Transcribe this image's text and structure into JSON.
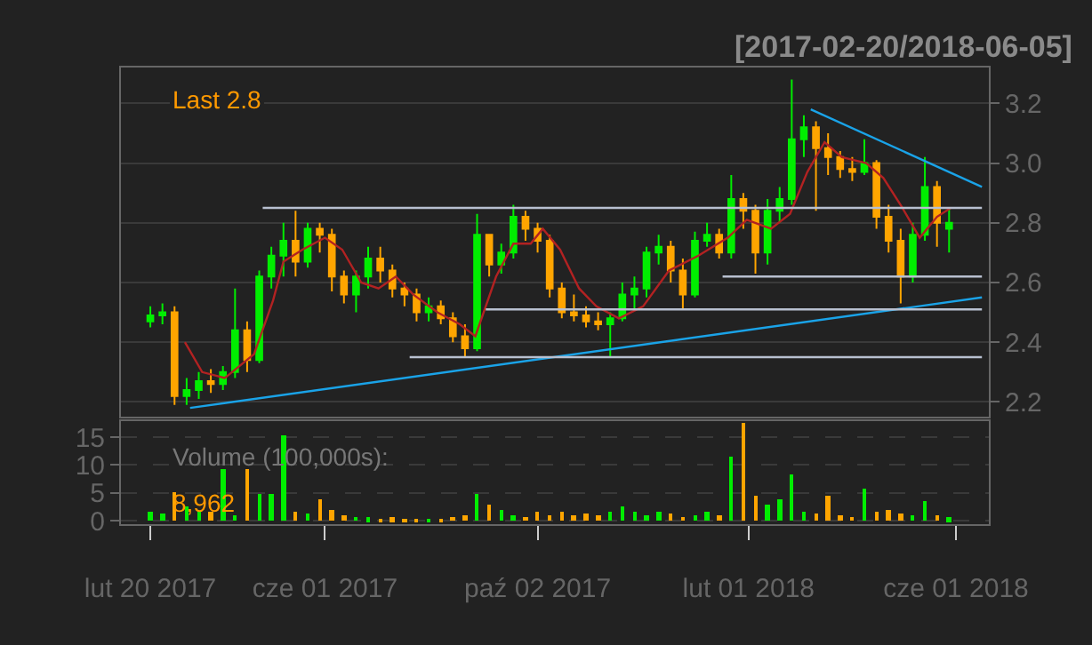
{
  "chart_data": [
    {
      "type": "candlestick",
      "title": "[2017-02-20/2018-06-05]",
      "annotations": [
        "Last 2.8"
      ],
      "x": [
        "2017-02-20",
        "2017-02-27",
        "2017-03-06",
        "2017-03-13",
        "2017-03-20",
        "2017-03-27",
        "2017-04-03",
        "2017-04-10",
        "2017-04-17",
        "2017-04-24",
        "2017-05-01",
        "2017-05-08",
        "2017-05-15",
        "2017-05-22",
        "2017-05-29",
        "2017-06-05",
        "2017-06-12",
        "2017-06-19",
        "2017-06-26",
        "2017-07-03",
        "2017-07-10",
        "2017-07-17",
        "2017-07-24",
        "2017-07-31",
        "2017-08-07",
        "2017-08-14",
        "2017-08-21",
        "2017-08-28",
        "2017-09-04",
        "2017-09-11",
        "2017-09-18",
        "2017-09-25",
        "2017-10-02",
        "2017-10-09",
        "2017-10-16",
        "2017-10-23",
        "2017-10-30",
        "2017-11-06",
        "2017-11-13",
        "2017-11-20",
        "2017-11-27",
        "2017-12-04",
        "2017-12-11",
        "2017-12-18",
        "2017-12-25",
        "2018-01-01",
        "2018-01-08",
        "2018-01-15",
        "2018-01-22",
        "2018-01-29",
        "2018-02-05",
        "2018-02-12",
        "2018-02-19",
        "2018-02-26",
        "2018-03-05",
        "2018-03-12",
        "2018-03-19",
        "2018-03-26",
        "2018-04-02",
        "2018-04-09",
        "2018-04-16",
        "2018-04-23",
        "2018-04-30",
        "2018-05-07",
        "2018-05-14",
        "2018-05-21",
        "2018-05-28"
      ],
      "ohlc": [
        [
          2.47,
          2.52,
          2.45,
          2.49
        ],
        [
          2.49,
          2.53,
          2.46,
          2.5
        ],
        [
          2.5,
          2.52,
          2.19,
          2.22
        ],
        [
          2.22,
          2.28,
          2.19,
          2.24
        ],
        [
          2.24,
          2.3,
          2.21,
          2.27
        ],
        [
          2.27,
          2.31,
          2.23,
          2.26
        ],
        [
          2.26,
          2.32,
          2.24,
          2.3
        ],
        [
          2.3,
          2.58,
          2.28,
          2.44
        ],
        [
          2.44,
          2.47,
          2.3,
          2.34
        ],
        [
          2.34,
          2.64,
          2.33,
          2.62
        ],
        [
          2.62,
          2.72,
          2.58,
          2.69
        ],
        [
          2.69,
          2.8,
          2.62,
          2.74
        ],
        [
          2.74,
          2.84,
          2.62,
          2.67
        ],
        [
          2.67,
          2.8,
          2.65,
          2.78
        ],
        [
          2.78,
          2.8,
          2.7,
          2.76
        ],
        [
          2.76,
          2.78,
          2.57,
          2.62
        ],
        [
          2.62,
          2.64,
          2.53,
          2.56
        ],
        [
          2.56,
          2.64,
          2.5,
          2.62
        ],
        [
          2.62,
          2.72,
          2.58,
          2.68
        ],
        [
          2.68,
          2.72,
          2.6,
          2.64
        ],
        [
          2.64,
          2.66,
          2.55,
          2.58
        ],
        [
          2.58,
          2.6,
          2.52,
          2.56
        ],
        [
          2.56,
          2.58,
          2.47,
          2.5
        ],
        [
          2.5,
          2.55,
          2.47,
          2.52
        ],
        [
          2.52,
          2.54,
          2.46,
          2.48
        ],
        [
          2.48,
          2.5,
          2.4,
          2.42
        ],
        [
          2.42,
          2.46,
          2.35,
          2.38
        ],
        [
          2.38,
          2.83,
          2.37,
          2.76
        ],
        [
          2.76,
          2.76,
          2.62,
          2.66
        ],
        [
          2.66,
          2.73,
          2.63,
          2.7
        ],
        [
          2.7,
          2.86,
          2.68,
          2.82
        ],
        [
          2.82,
          2.84,
          2.74,
          2.78
        ],
        [
          2.78,
          2.8,
          2.7,
          2.74
        ],
        [
          2.74,
          2.76,
          2.55,
          2.58
        ],
        [
          2.58,
          2.6,
          2.48,
          2.5
        ],
        [
          2.5,
          2.56,
          2.47,
          2.49
        ],
        [
          2.49,
          2.52,
          2.45,
          2.47
        ],
        [
          2.47,
          2.5,
          2.44,
          2.46
        ],
        [
          2.46,
          2.5,
          2.35,
          2.48
        ],
        [
          2.48,
          2.6,
          2.47,
          2.56
        ],
        [
          2.56,
          2.62,
          2.51,
          2.58
        ],
        [
          2.58,
          2.72,
          2.55,
          2.7
        ],
        [
          2.7,
          2.76,
          2.66,
          2.72
        ],
        [
          2.72,
          2.74,
          2.6,
          2.64
        ],
        [
          2.64,
          2.68,
          2.51,
          2.56
        ],
        [
          2.56,
          2.77,
          2.55,
          2.74
        ],
        [
          2.74,
          2.8,
          2.72,
          2.76
        ],
        [
          2.76,
          2.78,
          2.68,
          2.7
        ],
        [
          2.7,
          2.96,
          2.68,
          2.88
        ],
        [
          2.88,
          2.9,
          2.78,
          2.84
        ],
        [
          2.84,
          2.86,
          2.63,
          2.7
        ],
        [
          2.7,
          2.88,
          2.66,
          2.84
        ],
        [
          2.84,
          2.92,
          2.8,
          2.88
        ],
        [
          2.88,
          3.28,
          2.86,
          3.08
        ],
        [
          3.08,
          3.16,
          3.02,
          3.12
        ],
        [
          3.12,
          3.14,
          2.84,
          3.05
        ],
        [
          3.05,
          3.1,
          2.96,
          3.02
        ],
        [
          3.02,
          3.04,
          2.95,
          2.98
        ],
        [
          2.98,
          3.02,
          2.94,
          2.97
        ],
        [
          2.97,
          3.08,
          2.96,
          3.0
        ],
        [
          3.0,
          3.01,
          2.78,
          2.82
        ],
        [
          2.82,
          2.86,
          2.7,
          2.74
        ],
        [
          2.74,
          2.78,
          2.53,
          2.62
        ],
        [
          2.62,
          2.8,
          2.6,
          2.76
        ],
        [
          2.76,
          3.02,
          2.74,
          2.92
        ],
        [
          2.92,
          2.94,
          2.72,
          2.8
        ],
        [
          2.78,
          2.85,
          2.7,
          2.8
        ]
      ],
      "colors": [
        "#00ee00",
        "#00ee00",
        "#ffa500",
        "#00ee00",
        "#00ee00",
        "#ffa500",
        "#00ee00",
        "#00ee00",
        "#ffa500",
        "#00ee00",
        "#00ee00",
        "#00ee00",
        "#ffa500",
        "#00ee00",
        "#ffa500",
        "#ffa500",
        "#ffa500",
        "#00ee00",
        "#00ee00",
        "#ffa500",
        "#ffa500",
        "#ffa500",
        "#ffa500",
        "#00ee00",
        "#ffa500",
        "#ffa500",
        "#ffa500",
        "#00ee00",
        "#ffa500",
        "#00ee00",
        "#00ee00",
        "#ffa500",
        "#ffa500",
        "#ffa500",
        "#ffa500",
        "#ffa500",
        "#ffa500",
        "#ffa500",
        "#00ee00",
        "#00ee00",
        "#00ee00",
        "#00ee00",
        "#00ee00",
        "#ffa500",
        "#ffa500",
        "#00ee00",
        "#00ee00",
        "#ffa500",
        "#00ee00",
        "#ffa500",
        "#ffa500",
        "#00ee00",
        "#00ee00",
        "#00ee00",
        "#00ee00",
        "#ffa500",
        "#ffa500",
        "#ffa500",
        "#ffa500",
        "#00ee00",
        "#ffa500",
        "#ffa500",
        "#ffa500",
        "#00ee00",
        "#00ee00",
        "#ffa500",
        "#00ee00"
      ],
      "series": [
        {
          "type": "line",
          "color": "#b22222",
          "x": [
            "2017-03-12",
            "2017-03-22",
            "2017-04-04",
            "2017-04-21",
            "2017-05-02",
            "2017-05-08",
            "2017-05-19",
            "2017-06-01",
            "2017-06-11",
            "2017-06-22",
            "2017-07-02",
            "2017-07-12",
            "2017-07-22",
            "2017-08-05",
            "2017-08-18",
            "2017-08-27",
            "2017-09-08",
            "2017-09-18",
            "2017-09-28",
            "2017-10-05",
            "2017-10-15",
            "2017-10-26",
            "2017-11-05",
            "2017-11-18",
            "2017-12-02",
            "2017-12-17",
            "2018-01-03",
            "2018-01-20",
            "2018-01-31",
            "2018-02-14",
            "2018-02-25",
            "2018-03-07",
            "2018-03-17",
            "2018-03-27",
            "2018-04-10",
            "2018-04-20",
            "2018-05-01",
            "2018-05-11",
            "2018-05-21",
            "2018-05-29"
          ],
          "values": [
            2.4,
            2.3,
            2.28,
            2.36,
            2.54,
            2.67,
            2.71,
            2.75,
            2.71,
            2.6,
            2.58,
            2.62,
            2.56,
            2.5,
            2.46,
            2.42,
            2.62,
            2.73,
            2.73,
            2.78,
            2.71,
            2.58,
            2.52,
            2.48,
            2.52,
            2.64,
            2.69,
            2.75,
            2.81,
            2.78,
            2.83,
            2.97,
            3.07,
            3.02,
            3.0,
            2.95,
            2.85,
            2.75,
            2.82,
            2.85
          ]
        },
        {
          "type": "line",
          "color": "#1aa3e8",
          "x": [
            "2017-03-15",
            "2018-06-16"
          ],
          "values": [
            2.18,
            2.55
          ]
        },
        {
          "type": "line",
          "color": "#1aa3e8",
          "x": [
            "2018-03-09",
            "2018-06-16"
          ],
          "values": [
            3.18,
            2.92
          ]
        },
        {
          "type": "line",
          "color": "#b8c0d0",
          "x": [
            "2017-04-26",
            "2018-06-16"
          ],
          "values": [
            2.85,
            2.85
          ]
        },
        {
          "type": "line",
          "color": "#b8c0d0",
          "x": [
            "2018-01-17",
            "2018-06-16"
          ],
          "values": [
            2.62,
            2.62
          ]
        },
        {
          "type": "line",
          "color": "#b8c0d0",
          "x": [
            "2017-09-02",
            "2018-06-16"
          ],
          "values": [
            2.51,
            2.51
          ]
        },
        {
          "type": "line",
          "color": "#b8c0d0",
          "x": [
            "2017-07-20",
            "2018-06-16"
          ],
          "values": [
            2.35,
            2.35
          ]
        }
      ],
      "xlim": [
        "2017-02-03",
        "2018-06-20"
      ],
      "ylim": [
        2.15,
        3.32
      ],
      "yticks": [
        2.2,
        2.4,
        2.6,
        2.8,
        {
          "value": 3.0,
          "label": "3.0"
        },
        3.2
      ],
      "grid": "y",
      "tick_labels": "y"
    },
    {
      "type": "bar",
      "annotations": [
        "Volume (100,000s):",
        "8,962"
      ],
      "x": [
        "2017-02-20",
        "2017-02-27",
        "2017-03-06",
        "2017-03-13",
        "2017-03-20",
        "2017-03-27",
        "2017-04-03",
        "2017-04-10",
        "2017-04-17",
        "2017-04-24",
        "2017-05-01",
        "2017-05-08",
        "2017-05-15",
        "2017-05-22",
        "2017-05-29",
        "2017-06-05",
        "2017-06-12",
        "2017-06-19",
        "2017-06-26",
        "2017-07-03",
        "2017-07-10",
        "2017-07-17",
        "2017-07-24",
        "2017-07-31",
        "2017-08-07",
        "2017-08-14",
        "2017-08-21",
        "2017-08-28",
        "2017-09-04",
        "2017-09-11",
        "2017-09-18",
        "2017-09-25",
        "2017-10-02",
        "2017-10-09",
        "2017-10-16",
        "2017-10-23",
        "2017-10-30",
        "2017-11-06",
        "2017-11-13",
        "2017-11-20",
        "2017-11-27",
        "2017-12-04",
        "2017-12-11",
        "2017-12-18",
        "2017-12-25",
        "2018-01-01",
        "2018-01-08",
        "2018-01-15",
        "2018-01-22",
        "2018-01-29",
        "2018-02-05",
        "2018-02-12",
        "2018-02-19",
        "2018-02-26",
        "2018-03-05",
        "2018-03-12",
        "2018-03-19",
        "2018-03-26",
        "2018-04-02",
        "2018-04-09",
        "2018-04-16",
        "2018-04-23",
        "2018-04-30",
        "2018-05-07",
        "2018-05-14",
        "2018-05-21",
        "2018-05-28"
      ],
      "values": [
        1.5,
        1.2,
        5.3,
        2.5,
        1.5,
        1.8,
        9.4,
        1.0,
        9.4,
        5.0,
        5.0,
        15.2,
        1.8,
        1.2,
        3.8,
        2.0,
        1.0,
        0.8,
        0.6,
        0.5,
        0.6,
        0.5,
        0.4,
        0.5,
        0.5,
        0.8,
        1.0,
        5.0,
        3.0,
        2.0,
        1.0,
        0.8,
        1.5,
        1.0,
        1.5,
        1.0,
        1.2,
        1.0,
        1.5,
        2.5,
        1.5,
        1.0,
        1.5,
        1.2,
        0.8,
        1.0,
        1.5,
        1.0,
        11.5,
        17.5,
        4.5,
        3.0,
        3.8,
        8.2,
        1.5,
        1.2,
        4.5,
        1.0,
        0.8,
        5.7,
        1.5,
        2.0,
        1.2,
        1.0,
        3.5,
        1.0,
        0.6
      ],
      "colors": [
        "#00ee00",
        "#00ee00",
        "#ffa500",
        "#00ee00",
        "#00ee00",
        "#ffa500",
        "#00ee00",
        "#00ee00",
        "#ffa500",
        "#00ee00",
        "#00ee00",
        "#00ee00",
        "#ffa500",
        "#00ee00",
        "#ffa500",
        "#ffa500",
        "#ffa500",
        "#00ee00",
        "#00ee00",
        "#ffa500",
        "#ffa500",
        "#ffa500",
        "#ffa500",
        "#00ee00",
        "#ffa500",
        "#ffa500",
        "#ffa500",
        "#00ee00",
        "#ffa500",
        "#00ee00",
        "#00ee00",
        "#ffa500",
        "#ffa500",
        "#ffa500",
        "#ffa500",
        "#ffa500",
        "#ffa500",
        "#ffa500",
        "#00ee00",
        "#00ee00",
        "#00ee00",
        "#00ee00",
        "#00ee00",
        "#ffa500",
        "#ffa500",
        "#00ee00",
        "#00ee00",
        "#ffa500",
        "#00ee00",
        "#ffa500",
        "#ffa500",
        "#00ee00",
        "#00ee00",
        "#00ee00",
        "#00ee00",
        "#ffa500",
        "#ffa500",
        "#ffa500",
        "#ffa500",
        "#00ee00",
        "#ffa500",
        "#ffa500",
        "#ffa500",
        "#00ee00",
        "#00ee00",
        "#ffa500",
        "#00ee00"
      ],
      "xlim": [
        "2017-02-03",
        "2018-06-20"
      ],
      "xticks": [
        {
          "value": "2017-02-20",
          "label": "lut 20 2017"
        },
        {
          "value": "2017-06-01",
          "label": "cze 01 2017"
        },
        {
          "value": "2017-10-02",
          "label": "paź 02 2017"
        },
        {
          "value": "2018-02-01",
          "label": "lut 01 2018"
        },
        {
          "value": "2018-06-01",
          "label": "cze 01 2018"
        }
      ],
      "ylim": [
        -0.6,
        17.9
      ],
      "yticks": [
        0,
        5,
        10,
        15
      ],
      "grid": "y"
    }
  ]
}
